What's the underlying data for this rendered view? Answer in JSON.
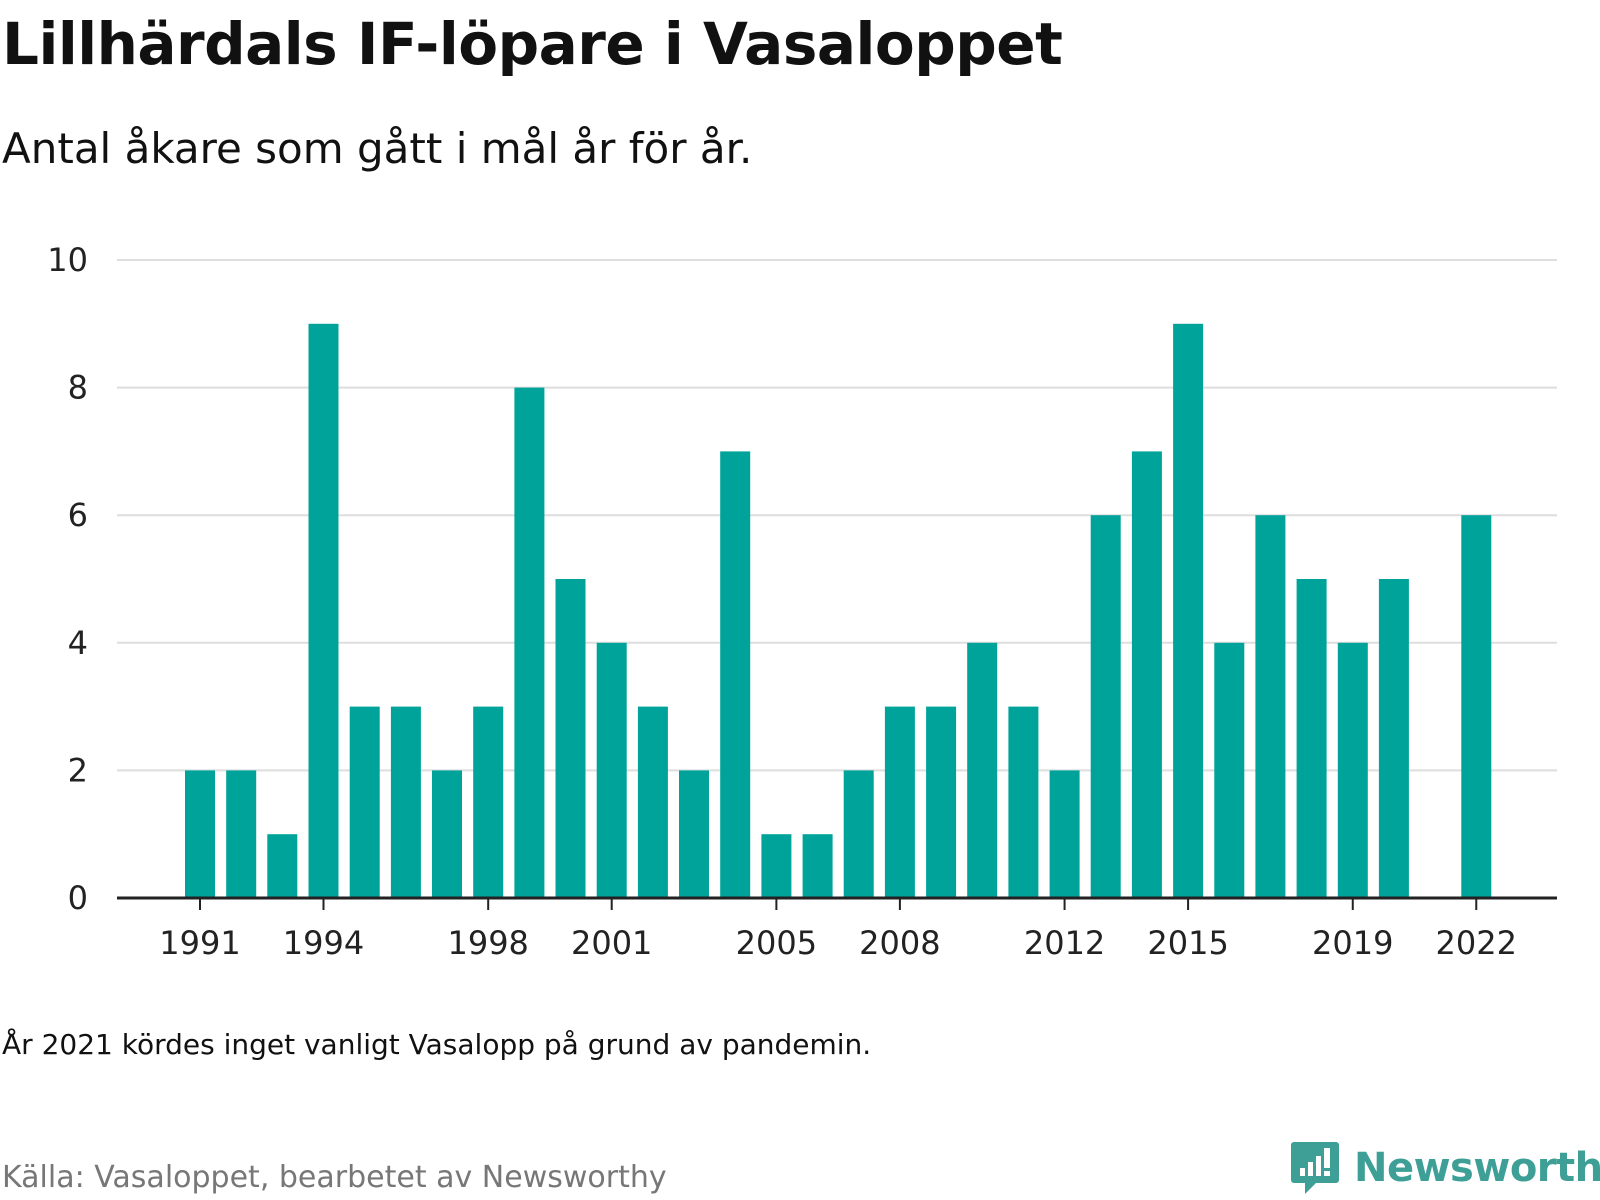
{
  "header": {
    "title": "Lillhärdals IF-löpare i Vasaloppet",
    "subtitle": "Antal åkare som gått i mål år för år."
  },
  "footer": {
    "note": "År 2021 kördes inget vanligt Vasalopp på grund av pandemin.",
    "source": "Källa: Vasaloppet, bearbetet av Newsworthy",
    "brand": "Newsworthy"
  },
  "colors": {
    "bar": "#00a39a",
    "grid": "#dedede",
    "axis": "#222222",
    "brand": "#3d9f95"
  },
  "icons": {
    "brand_logo": "newsworthy-bar-chart-speech-bubble-icon"
  },
  "chart_data": {
    "type": "bar",
    "categories": [
      1991,
      1992,
      1993,
      1994,
      1995,
      1996,
      1997,
      1998,
      1999,
      2000,
      2001,
      2002,
      2003,
      2004,
      2005,
      2006,
      2007,
      2008,
      2009,
      2010,
      2011,
      2012,
      2013,
      2014,
      2015,
      2016,
      2017,
      2018,
      2019,
      2020,
      2021,
      2022
    ],
    "values": [
      2,
      2,
      1,
      9,
      3,
      3,
      2,
      3,
      8,
      5,
      4,
      3,
      2,
      7,
      1,
      1,
      2,
      3,
      3,
      4,
      3,
      2,
      6,
      7,
      9,
      4,
      6,
      5,
      4,
      5,
      null,
      6
    ],
    "x_tick_labels": [
      1991,
      1994,
      1998,
      2001,
      2005,
      2008,
      2012,
      2015,
      2019,
      2022
    ],
    "y_ticks": [
      0,
      2,
      4,
      6,
      8,
      10
    ],
    "ylim": [
      0,
      10
    ],
    "grid": true,
    "legend": "none"
  }
}
